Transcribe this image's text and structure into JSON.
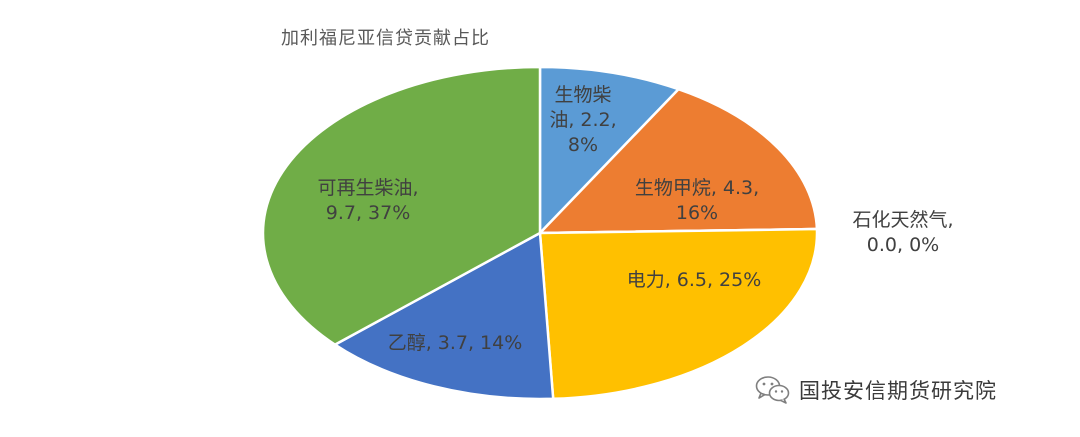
{
  "chart_data": {
    "type": "pie",
    "title": "加利福尼亚信贷贡献占比",
    "start_angle_deg": 0,
    "direction": "clockwise",
    "slices": [
      {
        "name": "生物柴油",
        "value": 2.2,
        "percent": "8%",
        "label": [
          "生物柴",
          "油, 2.2,",
          "8%"
        ],
        "color": "#5B9BD5"
      },
      {
        "name": "生物甲烷",
        "value": 4.3,
        "percent": "16%",
        "label": [
          "生物甲烷, 4.3,",
          "16%"
        ],
        "color": "#ED7D31"
      },
      {
        "name": "石化天然气",
        "value": 0.0,
        "percent": "0%",
        "label": [
          "石化天然气,",
          "0.0, 0%"
        ],
        "color": "#A5A5A5"
      },
      {
        "name": "电力",
        "value": 6.5,
        "percent": "25%",
        "label": [
          "电力, 6.5, 25%"
        ],
        "color": "#FFC000"
      },
      {
        "name": "乙醇",
        "value": 3.7,
        "percent": "14%",
        "label": [
          "乙醇, 3.7, 14%"
        ],
        "color": "#4472C4"
      },
      {
        "name": "可再生柴油",
        "value": 9.7,
        "percent": "37%",
        "label": [
          "可再生柴油,",
          "9.7, 37%"
        ],
        "color": "#70AD47"
      }
    ]
  },
  "watermark": {
    "text": "国投安信期货研究院",
    "icon": "wechat-icon"
  }
}
